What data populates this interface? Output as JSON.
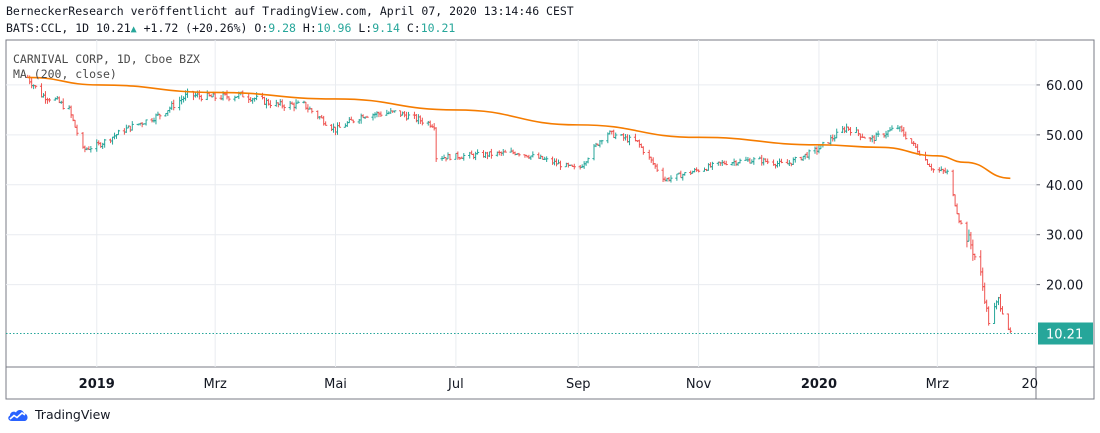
{
  "header": {
    "published": "BerneckerResearch veröffentlicht auf TradingView.com, April 07, 2020 13:14:46 CEST",
    "symbol": "BATS:CCL, 1D",
    "last": "10.21",
    "change": "+1.72 (+20.26%)",
    "o_label": "O:",
    "o": "9.28",
    "h_label": "H:",
    "h": "10.96",
    "l_label": "L:",
    "l": "9.14",
    "c_label": "C:",
    "c": "10.21"
  },
  "overlay": {
    "name": "CARNIVAL CORP, 1D, Cboe BZX",
    "indicator": "MA (200, close)"
  },
  "footer": {
    "brand": "TradingView"
  },
  "colors": {
    "up": "#26a69a",
    "down": "#ef5350",
    "ma": "#f57c00",
    "last_price": "#26a69a",
    "grid": "#e9ecf0"
  },
  "chart_data": {
    "type": "line",
    "title": "CARNIVAL CORP, 1D, Cboe BZX",
    "xlabel": "",
    "ylabel": "",
    "ylim": [
      3.5,
      69
    ],
    "y_ticks": [
      "60.00",
      "50.00",
      "40.00",
      "30.00",
      "20.00"
    ],
    "x_ticks": [
      "2019",
      "Mrz",
      "Mai",
      "Jul",
      "Sep",
      "Nov",
      "2020",
      "Mrz",
      "20"
    ],
    "last_price_label": "10.21",
    "grid": true,
    "series": [
      {
        "name": "CCL price (daily bars)",
        "x": [
          "2018-11-26",
          "2018-12-03",
          "2018-12-10",
          "2018-12-17",
          "2018-12-24",
          "2019-01-01",
          "2019-01-14",
          "2019-02-01",
          "2019-02-15",
          "2019-03-01",
          "2019-03-15",
          "2019-04-01",
          "2019-04-15",
          "2019-05-01",
          "2019-05-15",
          "2019-06-01",
          "2019-06-20",
          "2019-06-21",
          "2019-07-15",
          "2019-08-01",
          "2019-08-15",
          "2019-09-01",
          "2019-09-15",
          "2019-10-01",
          "2019-10-15",
          "2019-11-01",
          "2019-11-15",
          "2019-12-01",
          "2019-12-15",
          "2019-12-31",
          "2020-01-15",
          "2020-01-27",
          "2020-02-10",
          "2020-02-20",
          "2020-02-28",
          "2020-03-06",
          "2020-03-12",
          "2020-03-18",
          "2020-03-23",
          "2020-03-27",
          "2020-04-01",
          "2020-04-07"
        ],
        "values": [
          61.5,
          58,
          57,
          55,
          47,
          48,
          51,
          54,
          58,
          57.5,
          58,
          56,
          56,
          51,
          54,
          54.5,
          52,
          45.5,
          46,
          46.5,
          45,
          43,
          50.5,
          48.5,
          41,
          43,
          44.5,
          45,
          44,
          47,
          51.5,
          49,
          51.5,
          47,
          43,
          42.5,
          33,
          28,
          22,
          12.5,
          17,
          10.21
        ]
      },
      {
        "name": "MA (200, close)",
        "x": [
          "2018-11-26",
          "2019-01-01",
          "2019-03-01",
          "2019-05-01",
          "2019-07-01",
          "2019-09-01",
          "2019-11-01",
          "2020-01-01",
          "2020-02-01",
          "2020-03-01",
          "2020-03-15",
          "2020-04-07"
        ],
        "values": [
          61.5,
          60,
          58.5,
          57.2,
          55,
          52,
          49.5,
          48,
          47.5,
          45.8,
          44.5,
          41.3
        ]
      }
    ]
  }
}
